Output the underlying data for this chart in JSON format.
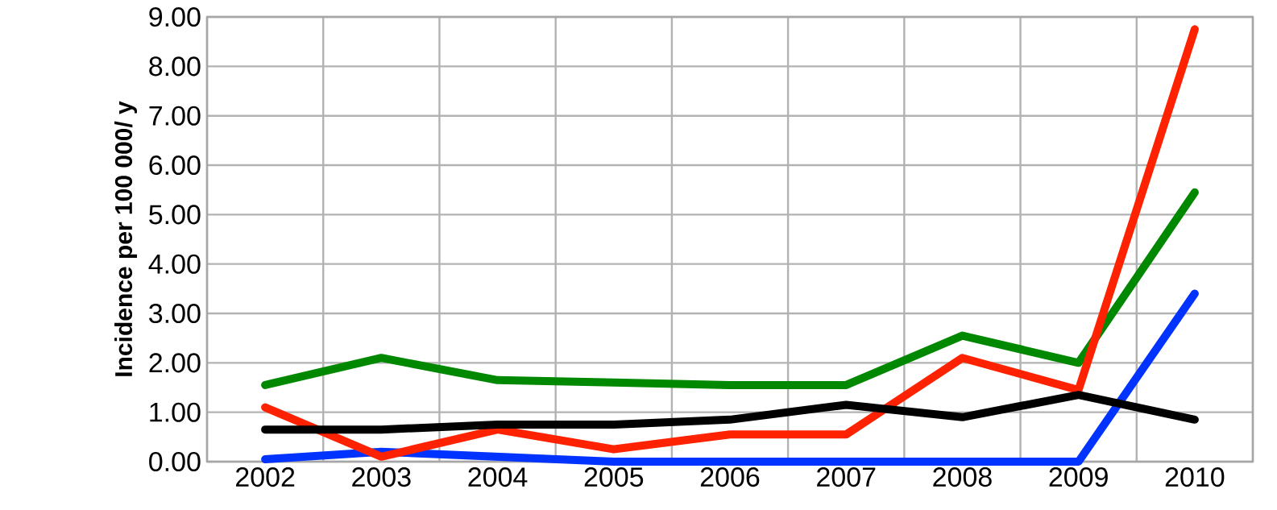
{
  "chart_data": {
    "type": "line",
    "ylabel": "Incidence per 100 000/ y",
    "categories": [
      "2002",
      "2003",
      "2004",
      "2005",
      "2006",
      "2007",
      "2008",
      "2009",
      "2010"
    ],
    "series": [
      {
        "color": "#0033ff",
        "values": [
          0.05,
          0.2,
          0.1,
          0,
          0,
          0,
          0,
          0,
          3.4
        ]
      },
      {
        "color": "#008800",
        "values": [
          1.55,
          2.1,
          1.65,
          1.6,
          1.55,
          1.55,
          2.55,
          2.0,
          5.45
        ]
      },
      {
        "color": "#ff2200",
        "values": [
          1.1,
          0.1,
          0.65,
          0.25,
          0.55,
          0.55,
          2.1,
          1.45,
          8.75
        ]
      },
      {
        "color": "#000000",
        "values": [
          0.65,
          0.65,
          0.75,
          0.75,
          0.85,
          1.15,
          0.9,
          1.35,
          0.85
        ]
      }
    ],
    "ylim": [
      0,
      9
    ],
    "yticks": [
      {
        "value": 0,
        "label": "0.00"
      },
      {
        "value": 1,
        "label": "1.00"
      },
      {
        "value": 2,
        "label": "2.00"
      },
      {
        "value": 3,
        "label": "3.00"
      },
      {
        "value": 4,
        "label": "4.00"
      },
      {
        "value": 5,
        "label": "5.00"
      },
      {
        "value": 6,
        "label": "6.00"
      },
      {
        "value": 7,
        "label": "7.00"
      },
      {
        "value": 8,
        "label": "8.00"
      },
      {
        "value": 9,
        "label": "9.00"
      }
    ],
    "grid": true,
    "marker": "none",
    "line_style": "solid"
  }
}
